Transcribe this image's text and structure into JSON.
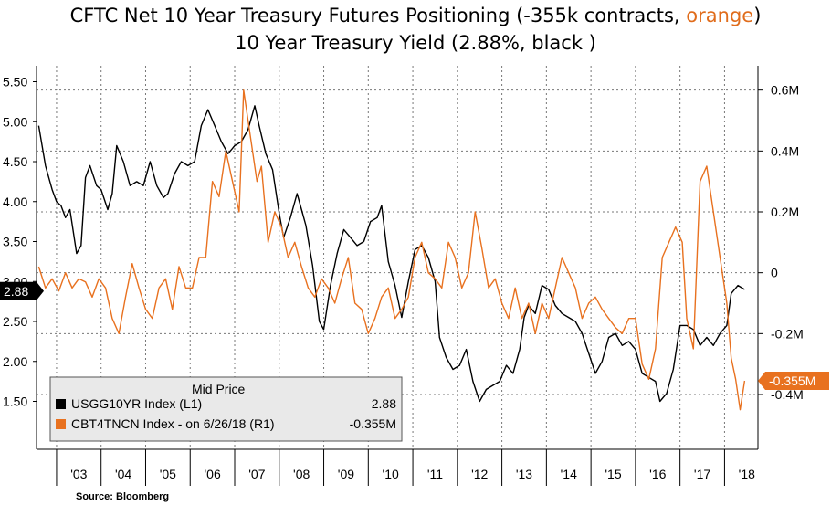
{
  "title": {
    "line1_prefix": "CFTC Net 10 Year Treasury Futures Positioning (-355k contracts, ",
    "line1_orange": "orange",
    "line1_suffix": ")",
    "line2": "10 Year Treasury Yield (2.88%, black )"
  },
  "source": "Source: Bloomberg",
  "colors": {
    "yield": "#000000",
    "positioning": "#e8711f",
    "grid": "#777777"
  },
  "legend": {
    "header": "Mid Price",
    "rows": [
      {
        "label": "USGG10YR Index  (L1)",
        "value": "2.88",
        "color": "#000000"
      },
      {
        "label": "CBT4TNCN Index -  on 6/26/18  (R1)",
        "value": "-0.355M",
        "color": "#e8711f"
      }
    ]
  },
  "chart_data": {
    "type": "line",
    "x_tick_labels": [
      "'03",
      "'04",
      "'05",
      "'06",
      "'07",
      "'08",
      "'09",
      "'10",
      "'11",
      "'12",
      "'13",
      "'14",
      "'15",
      "'16",
      "'17",
      "'18"
    ],
    "left_axis": {
      "ticks": [
        "5.50",
        "5.00",
        "4.50",
        "4.00",
        "3.50",
        "3.00",
        "2.50",
        "2.00",
        "1.50"
      ],
      "values": [
        5.5,
        5.0,
        4.5,
        4.0,
        3.5,
        3.0,
        2.5,
        2.0,
        1.5
      ],
      "ylim": [
        0.9,
        5.7
      ],
      "last_value_label": "2.88"
    },
    "right_axis": {
      "ticks": [
        "0.6M",
        "0.4M",
        "0.2M",
        "0",
        "-0.2M",
        "-0.4M"
      ],
      "values": [
        0.6,
        0.4,
        0.2,
        0,
        -0.2,
        -0.4
      ],
      "ylim": [
        -0.58,
        0.68
      ],
      "last_value_label": "-0.355M"
    },
    "grid": true,
    "series": [
      {
        "name": "USGG10YR Index",
        "axis": "left",
        "x": [
          2002.6,
          2002.75,
          2002.9,
          2003.0,
          2003.1,
          2003.2,
          2003.3,
          2003.45,
          2003.55,
          2003.65,
          2003.75,
          2003.9,
          2004.0,
          2004.15,
          2004.25,
          2004.35,
          2004.5,
          2004.65,
          2004.8,
          2004.95,
          2005.1,
          2005.25,
          2005.4,
          2005.5,
          2005.65,
          2005.8,
          2005.95,
          2006.1,
          2006.25,
          2006.4,
          2006.55,
          2006.7,
          2006.85,
          2007.0,
          2007.15,
          2007.3,
          2007.45,
          2007.55,
          2007.7,
          2007.85,
          2008.0,
          2008.1,
          2008.25,
          2008.4,
          2008.5,
          2008.6,
          2008.75,
          2008.9,
          2009.0,
          2009.15,
          2009.3,
          2009.45,
          2009.6,
          2009.75,
          2009.9,
          2010.05,
          2010.2,
          2010.3,
          2010.45,
          2010.6,
          2010.75,
          2010.9,
          2011.05,
          2011.2,
          2011.35,
          2011.5,
          2011.6,
          2011.75,
          2011.9,
          2012.05,
          2012.2,
          2012.35,
          2012.5,
          2012.65,
          2012.8,
          2012.95,
          2013.1,
          2013.25,
          2013.4,
          2013.5,
          2013.6,
          2013.75,
          2013.9,
          2014.05,
          2014.2,
          2014.35,
          2014.5,
          2014.65,
          2014.8,
          2014.95,
          2015.1,
          2015.25,
          2015.4,
          2015.55,
          2015.7,
          2015.85,
          2016.0,
          2016.15,
          2016.3,
          2016.45,
          2016.55,
          2016.7,
          2016.85,
          2017.0,
          2017.15,
          2017.3,
          2017.45,
          2017.6,
          2017.75,
          2017.9,
          2018.05,
          2018.15,
          2018.3,
          2018.45
        ],
        "values": [
          4.95,
          4.45,
          4.15,
          4.0,
          3.95,
          3.8,
          3.9,
          3.35,
          3.45,
          4.3,
          4.45,
          4.2,
          4.15,
          3.9,
          4.1,
          4.7,
          4.5,
          4.2,
          4.25,
          4.2,
          4.5,
          4.2,
          4.05,
          4.1,
          4.35,
          4.5,
          4.45,
          4.5,
          4.95,
          5.15,
          4.95,
          4.75,
          4.6,
          4.7,
          4.75,
          4.9,
          5.2,
          4.95,
          4.6,
          4.4,
          3.85,
          3.55,
          3.8,
          4.1,
          3.9,
          3.7,
          3.2,
          2.5,
          2.4,
          2.95,
          3.35,
          3.65,
          3.55,
          3.45,
          3.5,
          3.75,
          3.8,
          3.95,
          3.25,
          2.95,
          2.55,
          3.0,
          3.4,
          3.45,
          3.3,
          3.0,
          2.3,
          2.05,
          1.9,
          1.95,
          2.15,
          1.75,
          1.5,
          1.65,
          1.7,
          1.75,
          1.95,
          1.85,
          2.15,
          2.55,
          2.7,
          2.6,
          2.95,
          2.9,
          2.7,
          2.6,
          2.55,
          2.5,
          2.35,
          2.1,
          1.85,
          2.0,
          2.3,
          2.35,
          2.2,
          2.25,
          2.15,
          1.85,
          1.8,
          1.75,
          1.5,
          1.6,
          1.9,
          2.45,
          2.45,
          2.4,
          2.2,
          2.3,
          2.2,
          2.35,
          2.45,
          2.85,
          2.95,
          2.9
        ]
      },
      {
        "name": "CBT4TNCN Index",
        "axis": "right",
        "x": [
          2002.6,
          2002.75,
          2002.9,
          2003.05,
          2003.2,
          2003.35,
          2003.5,
          2003.65,
          2003.8,
          2003.95,
          2004.1,
          2004.25,
          2004.4,
          2004.55,
          2004.7,
          2004.85,
          2005.0,
          2005.15,
          2005.3,
          2005.45,
          2005.6,
          2005.75,
          2005.9,
          2006.05,
          2006.2,
          2006.35,
          2006.5,
          2006.65,
          2006.8,
          2006.95,
          2007.1,
          2007.2,
          2007.35,
          2007.5,
          2007.6,
          2007.75,
          2007.9,
          2008.05,
          2008.2,
          2008.35,
          2008.5,
          2008.65,
          2008.8,
          2008.95,
          2009.1,
          2009.25,
          2009.4,
          2009.55,
          2009.7,
          2009.85,
          2010.0,
          2010.15,
          2010.3,
          2010.45,
          2010.6,
          2010.75,
          2010.9,
          2011.05,
          2011.2,
          2011.35,
          2011.5,
          2011.65,
          2011.8,
          2011.95,
          2012.1,
          2012.25,
          2012.4,
          2012.55,
          2012.7,
          2012.85,
          2013.0,
          2013.15,
          2013.3,
          2013.45,
          2013.6,
          2013.75,
          2013.9,
          2014.05,
          2014.2,
          2014.35,
          2014.5,
          2014.65,
          2014.8,
          2014.95,
          2015.1,
          2015.25,
          2015.4,
          2015.55,
          2015.7,
          2015.85,
          2016.0,
          2016.15,
          2016.3,
          2016.45,
          2016.6,
          2016.75,
          2016.9,
          2017.05,
          2017.15,
          2017.3,
          2017.45,
          2017.6,
          2017.75,
          2017.9,
          2018.05,
          2018.15,
          2018.25,
          2018.35,
          2018.45
        ],
        "values": [
          0.02,
          -0.05,
          -0.02,
          -0.06,
          0.0,
          -0.05,
          -0.02,
          -0.03,
          -0.08,
          -0.02,
          -0.05,
          -0.15,
          -0.2,
          -0.08,
          0.03,
          -0.05,
          -0.12,
          -0.15,
          -0.05,
          -0.02,
          -0.12,
          0.02,
          -0.05,
          -0.05,
          0.05,
          0.05,
          0.3,
          0.25,
          0.4,
          0.3,
          0.2,
          0.6,
          0.45,
          0.3,
          0.35,
          0.1,
          0.2,
          0.15,
          0.05,
          0.1,
          0.02,
          -0.05,
          -0.08,
          -0.02,
          -0.05,
          -0.1,
          -0.02,
          0.05,
          -0.1,
          -0.12,
          -0.2,
          -0.15,
          -0.08,
          -0.05,
          -0.15,
          -0.12,
          -0.08,
          0.05,
          0.1,
          0.0,
          -0.02,
          -0.05,
          0.1,
          0.05,
          -0.05,
          0.0,
          0.2,
          0.08,
          -0.05,
          -0.02,
          -0.1,
          -0.15,
          -0.05,
          -0.15,
          -0.1,
          -0.2,
          -0.1,
          -0.15,
          -0.05,
          0.05,
          0.0,
          -0.05,
          -0.15,
          -0.1,
          -0.08,
          -0.12,
          -0.15,
          -0.18,
          -0.2,
          -0.15,
          -0.15,
          -0.3,
          -0.35,
          -0.25,
          0.05,
          0.1,
          0.15,
          0.1,
          -0.15,
          -0.25,
          0.3,
          0.35,
          0.2,
          0.05,
          -0.1,
          -0.28,
          -0.35,
          -0.45,
          -0.355
        ]
      }
    ]
  }
}
